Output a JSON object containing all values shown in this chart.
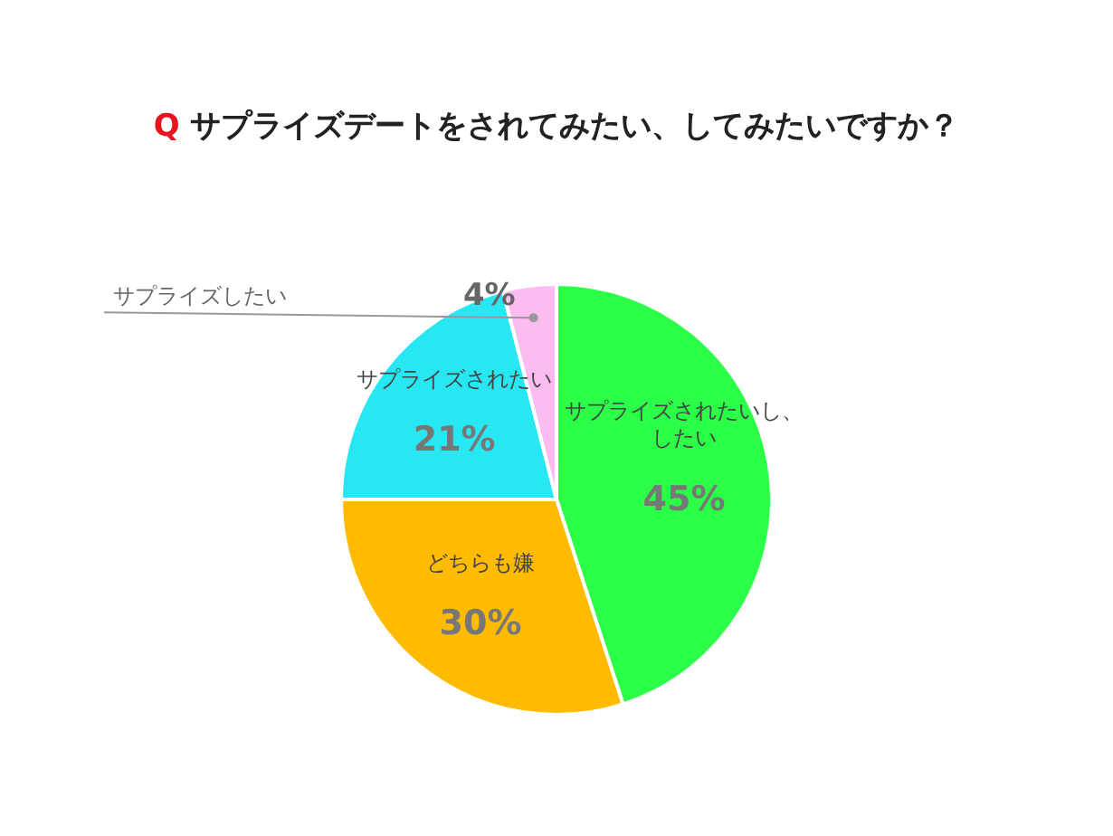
{
  "chart_data": {
    "type": "pie",
    "title": "Q サプライズデートをされてみたい、してみたいですか？",
    "categories": [
      "サプライズされたいし、したい",
      "どちらも嫌",
      "サプライズされたい",
      "サプライズしたい"
    ],
    "values": [
      45,
      30,
      21,
      4
    ],
    "colors": [
      "#2bff47",
      "#ffbb00",
      "#27e8f2",
      "#fcbcf0"
    ],
    "value_labels": [
      "45%",
      "30%",
      "21%",
      "4%"
    ],
    "legend": false
  }
}
